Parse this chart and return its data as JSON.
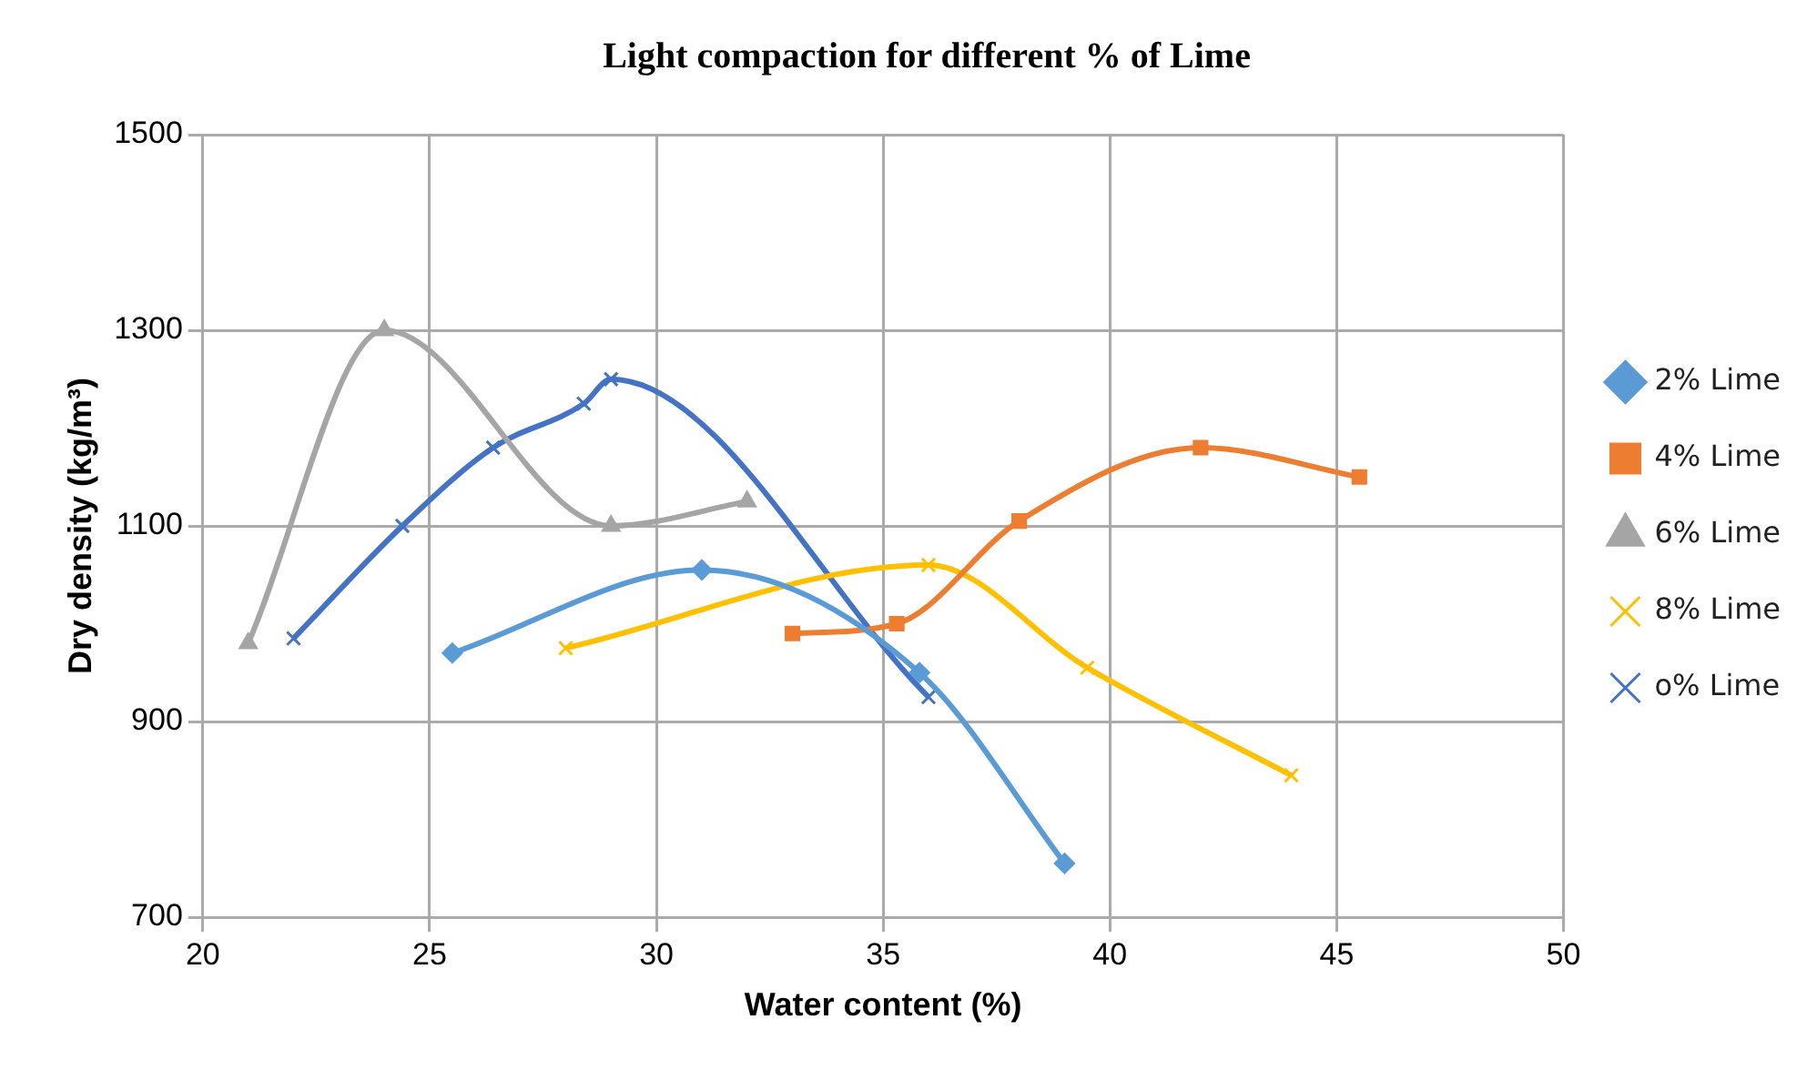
{
  "chart_data": {
    "type": "line",
    "title": "Light compaction for different % of Lime",
    "xlabel": "Water content (%)",
    "ylabel": "Dry density (kg/m³)",
    "xlim": [
      20,
      50
    ],
    "xticks": [
      20,
      25,
      30,
      35,
      40,
      45,
      50
    ],
    "ylim": [
      700,
      1500
    ],
    "yticks": [
      700,
      900,
      1100,
      1300,
      1500
    ],
    "grid": true,
    "legend": "right",
    "line_style": "solid",
    "series": [
      {
        "name": "2% Lime",
        "color": "#5b9bd5",
        "marker": "diamond",
        "x": [
          25.5,
          31,
          35.8,
          39
        ],
        "values": [
          970,
          1055,
          950,
          755
        ]
      },
      {
        "name": "4% Lime",
        "color": "#ed7d31",
        "marker": "square",
        "x": [
          33,
          35.3,
          38,
          42,
          45.5
        ],
        "values": [
          990,
          1000,
          1105,
          1180,
          1150
        ]
      },
      {
        "name": "6% Lime",
        "color": "#a5a5a5",
        "marker": "triangle",
        "x": [
          21,
          24,
          29,
          32
        ],
        "values": [
          980,
          1300,
          1100,
          1125
        ]
      },
      {
        "name": "8% Lime",
        "color": "#ffc000",
        "marker": "cross",
        "x": [
          28,
          36,
          39.5,
          44
        ],
        "values": [
          975,
          1060,
          955,
          845
        ]
      },
      {
        "name": "o% Lime",
        "color": "#4472c4",
        "marker": "cross",
        "x": [
          22,
          24.4,
          26.4,
          28.4,
          29,
          36
        ],
        "values": [
          985,
          1100,
          1180,
          1225,
          1250,
          925
        ]
      }
    ]
  }
}
